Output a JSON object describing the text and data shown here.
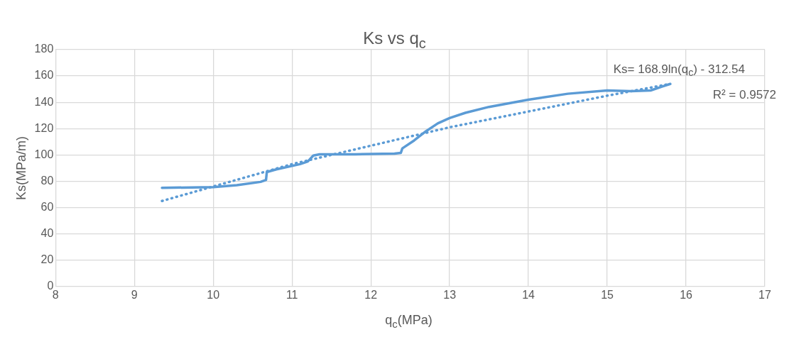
{
  "chart_data": {
    "type": "line",
    "title": "Ks vs q$_{c}$",
    "xlabel": "q$_{c}$(MPa)",
    "ylabel": "Ks(MPa/m)",
    "xlim": [
      8,
      17
    ],
    "xticks": [
      8,
      9,
      10,
      11,
      12,
      13,
      14,
      15,
      16,
      17
    ],
    "ylim": [
      0,
      180
    ],
    "yticks": [
      0,
      20,
      40,
      60,
      80,
      100,
      120,
      140,
      160,
      180
    ],
    "grid": true,
    "legend": false,
    "marker": "none",
    "annotations": [
      "Ks= 168.9ln(q$_{c}$) - 312.54",
      "R² = 0.9572"
    ],
    "series": [
      {
        "color": "#5b9bd5",
        "line_style": "solid",
        "x": [
          9.35,
          10.0,
          10.3,
          10.6,
          10.67,
          10.68,
          10.8,
          11.1,
          11.2,
          11.27,
          11.35,
          11.8,
          12.3,
          12.38,
          12.4,
          12.55,
          12.7,
          12.85,
          13.0,
          13.2,
          13.5,
          14.0,
          14.5,
          15.0,
          15.3,
          15.55,
          15.7,
          15.8
        ],
        "values": [
          75,
          75.5,
          77,
          79.5,
          81,
          87,
          89,
          93,
          95,
          99.5,
          100.5,
          100.5,
          101,
          101.5,
          105,
          111,
          118,
          124,
          128,
          132,
          136.5,
          142,
          146.5,
          149,
          148.5,
          149,
          152,
          154
        ]
      },
      {
        "type": "line",
        "color": "#5b9bd5",
        "line_style": "dotted",
        "x": [
          9.35,
          10,
          11,
          12,
          13,
          14,
          15,
          15.8
        ],
        "values": [
          65,
          76,
          93,
          107,
          121,
          133,
          145,
          154
        ]
      }
    ]
  }
}
